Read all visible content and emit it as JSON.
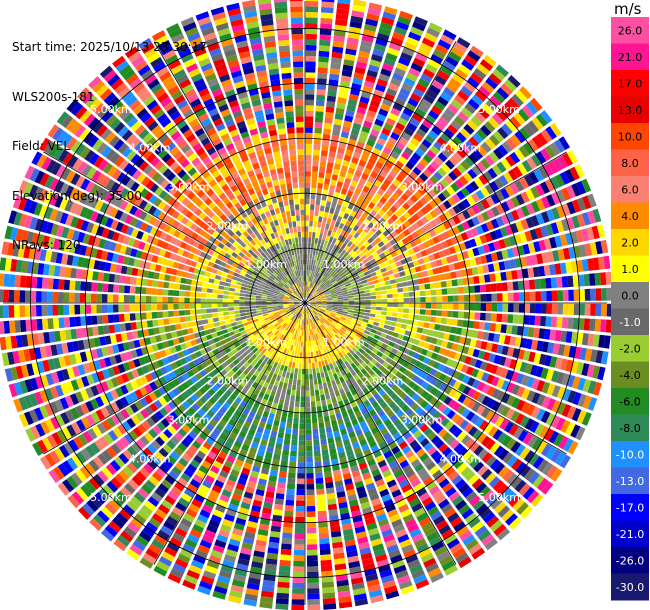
{
  "header": {
    "start_time": "Start time: 2025/10/13 23:30:17",
    "instrument": "WLS200s-181",
    "field": "Field: VEL",
    "elevation": "Elevation(deg): 35.00",
    "nrays": "NRays: 120"
  },
  "colorbar": {
    "unit": "m/s",
    "ticks": [
      "26.0",
      "21.0",
      "17.0",
      "13.0",
      "10.0",
      "8.0",
      "6.0",
      "4.0",
      "2.0",
      "1.0",
      "0.0",
      "-1.0",
      "-2.0",
      "-4.0",
      "-6.0",
      "-8.0",
      "-10.0",
      "-13.0",
      "-17.0",
      "-21.0",
      "-26.0",
      "-30.0"
    ],
    "colors": [
      "#ff4fa3",
      "#ff1493",
      "#ff0000",
      "#e80000",
      "#ff4500",
      "#ff6347",
      "#fa8072",
      "#ff8c00",
      "#ffd700",
      "#ffff00",
      "#808080",
      "#696969",
      "#9acd32",
      "#6b8e23",
      "#228b22",
      "#2e8b57",
      "#1e90ff",
      "#4169e1",
      "#0000ff",
      "#0000cd",
      "#000080",
      "#191970"
    ]
  },
  "chart_data": {
    "type": "ppi",
    "field": "VEL",
    "units": "m/s",
    "elevation_deg": 35.0,
    "n_rays": 120,
    "range_rings_km": [
      1.0,
      2.0,
      3.0,
      4.0,
      5.0
    ],
    "ring_labels": [
      "1.00km",
      "2.00km",
      "3.00km",
      "4.00km",
      "5.00km"
    ],
    "max_range_km": 5.5,
    "grid": true
  }
}
